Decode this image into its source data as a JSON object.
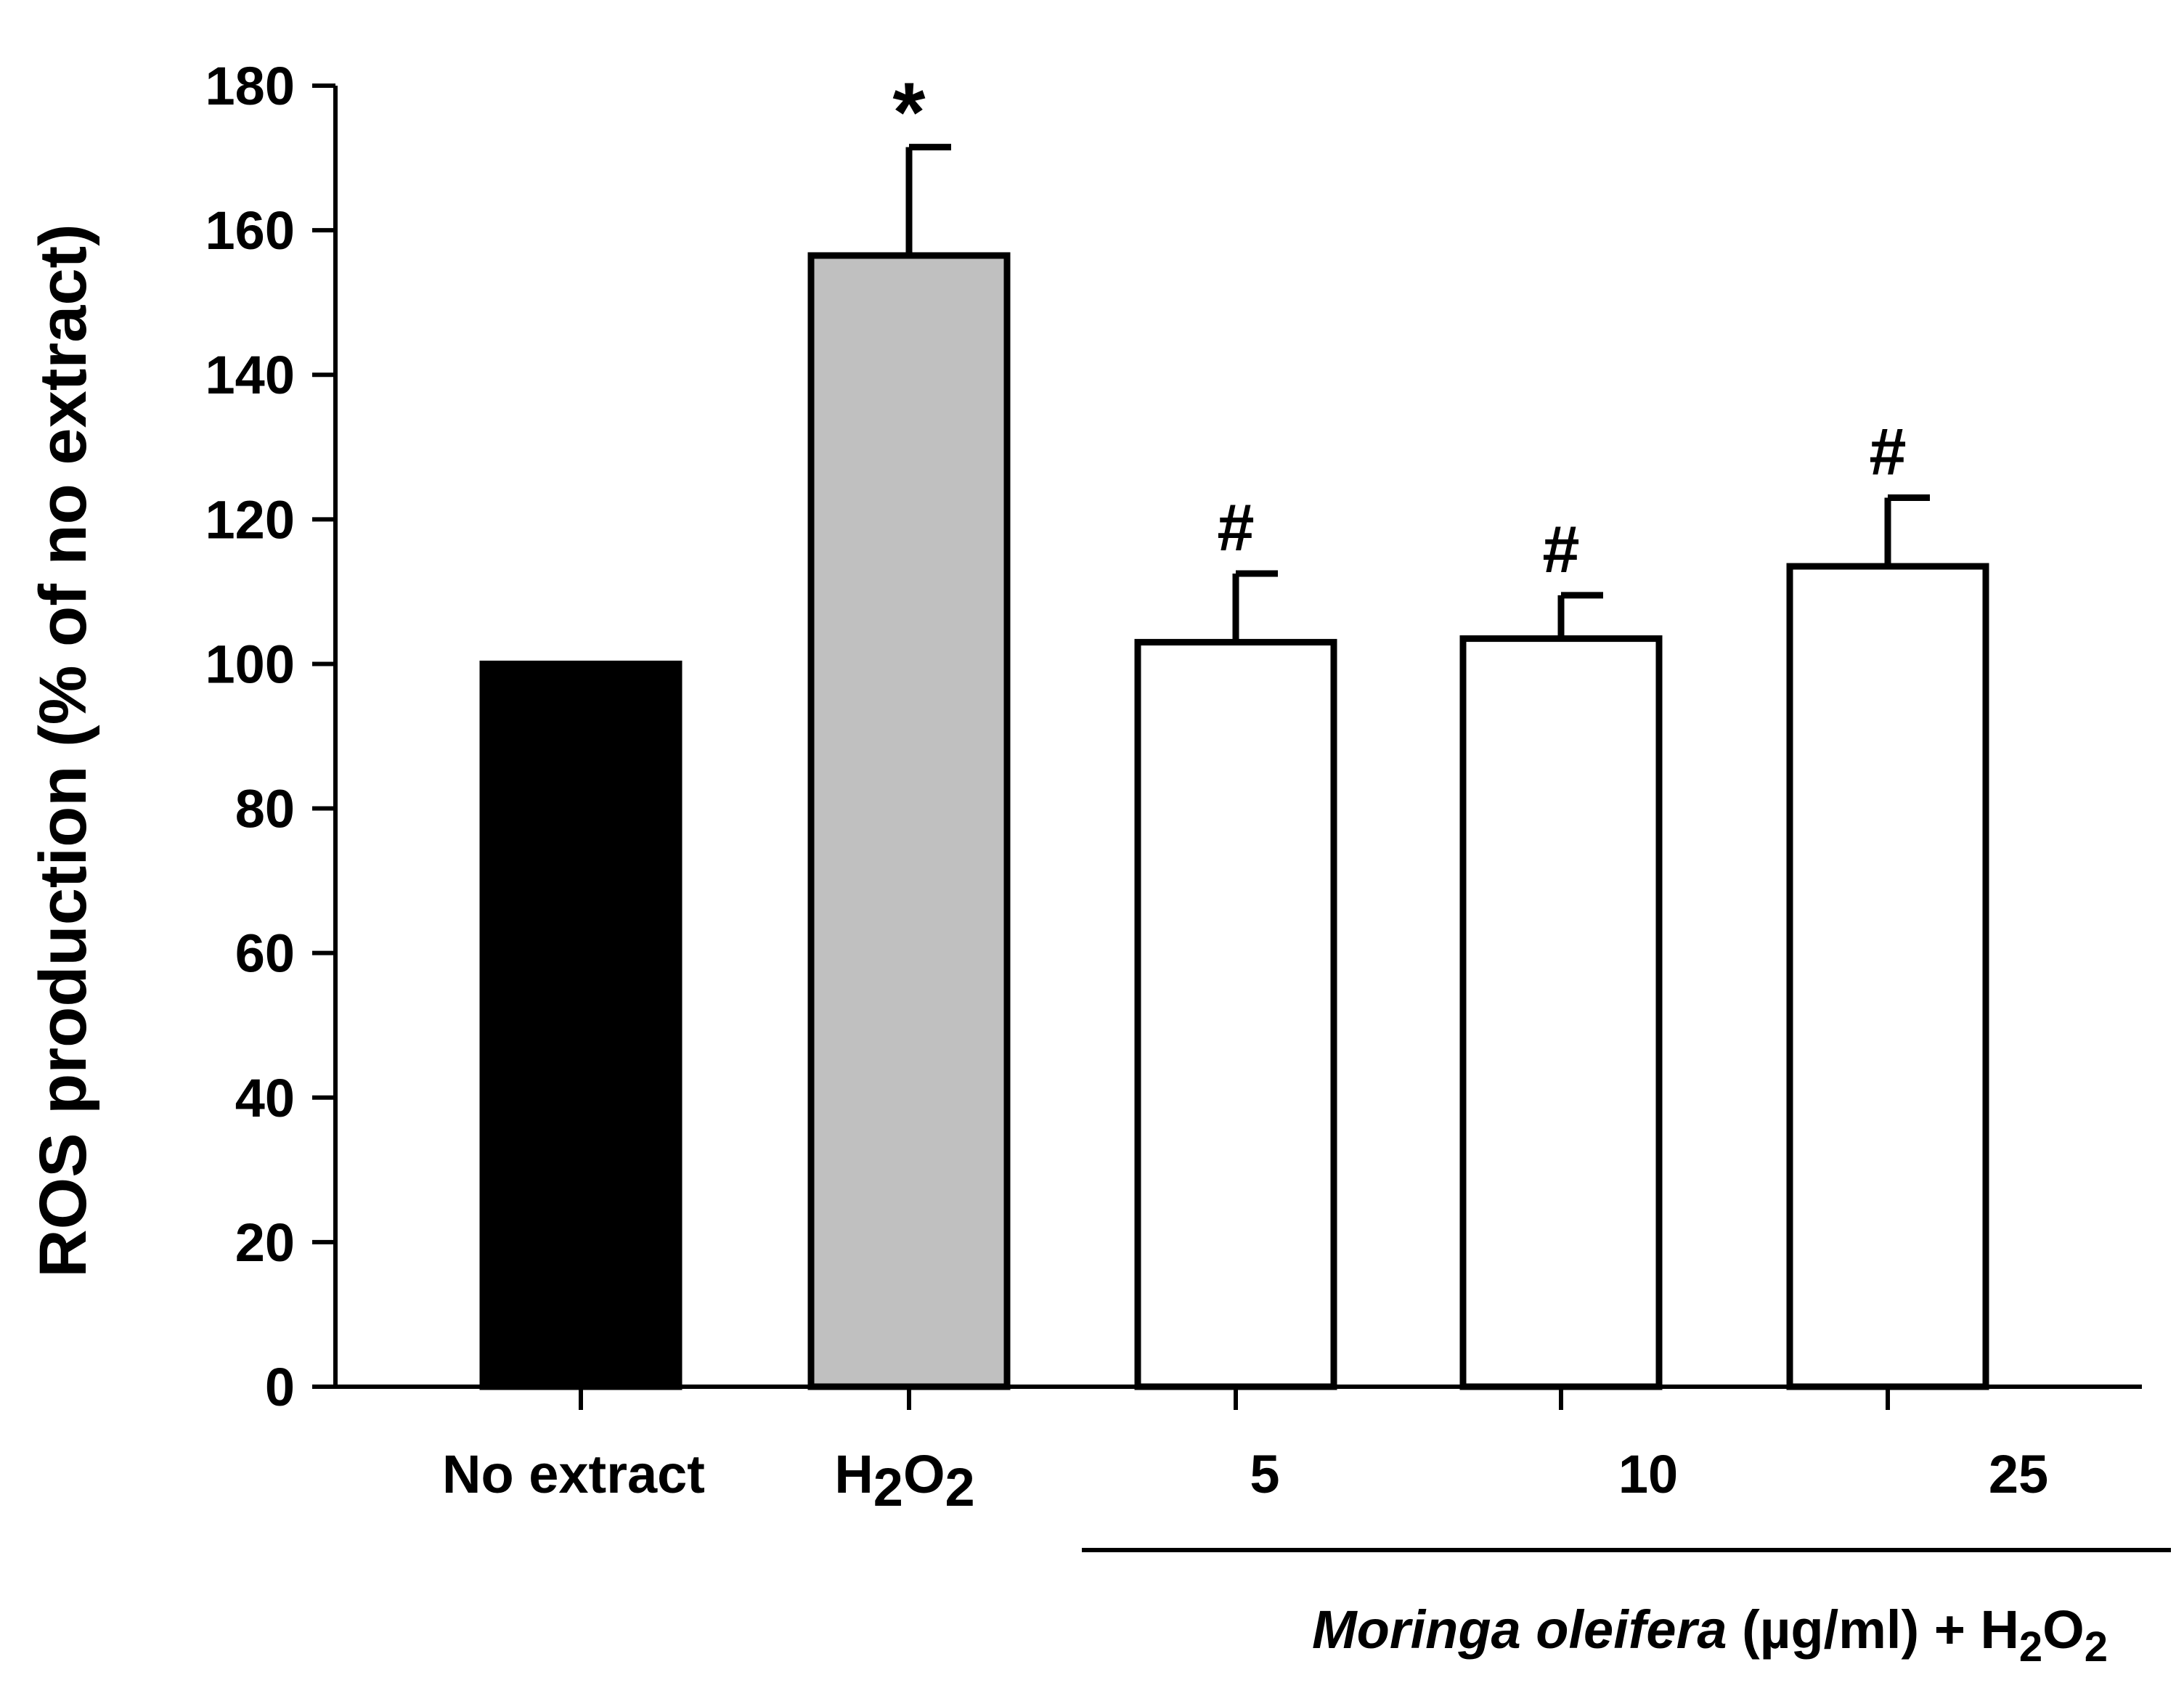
{
  "chart_data": {
    "type": "bar",
    "title": "",
    "xlabel": "",
    "ylabel": "ROS production (% of no extract)",
    "ylim": [
      0,
      180
    ],
    "yticks": [
      "0",
      "20",
      "40",
      "60",
      "80",
      "100",
      "120",
      "140",
      "160",
      "180"
    ],
    "grid": false,
    "categories": [
      "No extract",
      "H2O2",
      "5",
      "10",
      "25"
    ],
    "values": [
      100,
      156.5,
      103,
      103.5,
      113.5
    ],
    "errors": [
      0,
      15,
      9.5,
      6,
      9.5
    ],
    "significance": [
      "",
      "*",
      "#",
      "#",
      "#"
    ],
    "bar_fills": [
      "#000000",
      "#c0c0c0",
      "#ffffff",
      "#ffffff",
      "#ffffff"
    ],
    "group_label": {
      "italic": "Moringa oleifera",
      "rest": " (µg/ml) + H",
      "sub1": "2",
      "mid": "O",
      "sub2": "2"
    },
    "h2o2_label": {
      "h": "H",
      "sub1": "2",
      "o": "O",
      "sub2": "2"
    }
  }
}
